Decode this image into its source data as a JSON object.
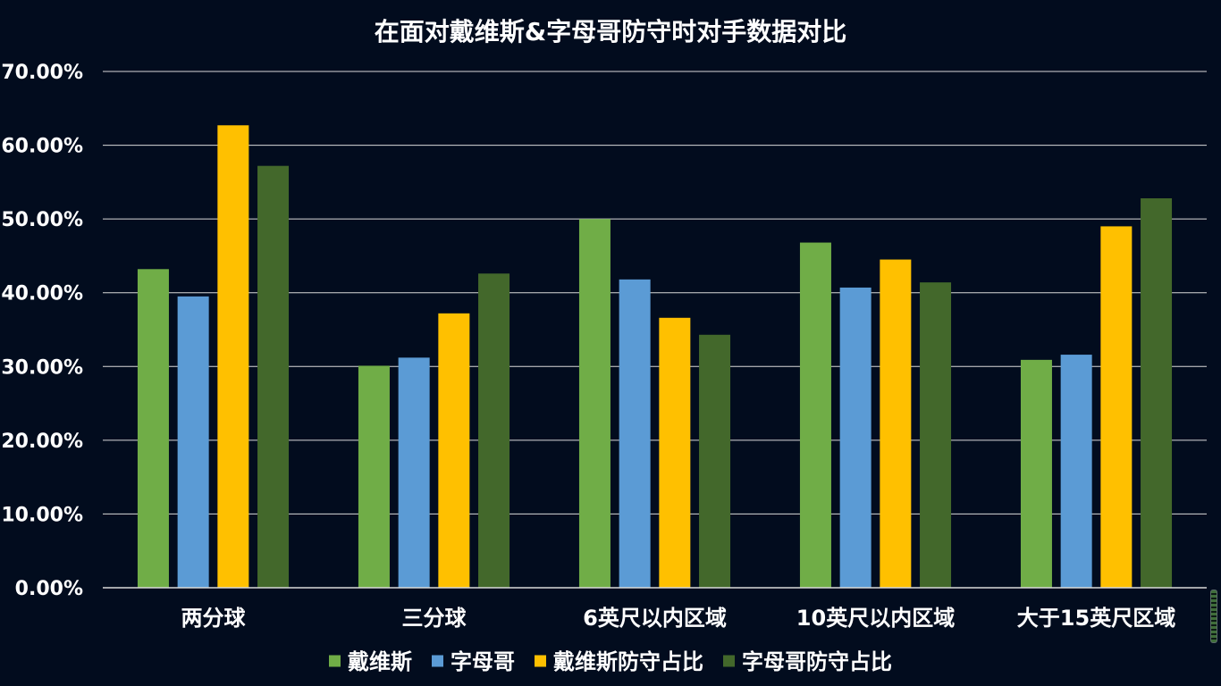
{
  "chart_data": {
    "type": "bar",
    "title": "在面对戴维斯&字母哥防守时对手数据对比",
    "categories": [
      "两分球",
      "三分球",
      "6英尺以内区域",
      "10英尺以内区域",
      "大于15英尺区域"
    ],
    "series": [
      {
        "name": "戴维斯",
        "color": "#70ad47",
        "values": [
          43.2,
          30.1,
          50.0,
          46.8,
          30.9
        ]
      },
      {
        "name": "字母哥",
        "color": "#5b9bd5",
        "values": [
          39.5,
          31.2,
          41.8,
          40.7,
          31.6
        ]
      },
      {
        "name": "戴维斯防守占比",
        "color": "#ffc000",
        "values": [
          62.7,
          37.2,
          36.6,
          44.5,
          49.0
        ]
      },
      {
        "name": "字母哥防守占比",
        "color": "#43682b",
        "values": [
          57.2,
          42.6,
          34.3,
          41.4,
          52.8
        ]
      }
    ],
    "yticks": [
      "0.00%",
      "10.00%",
      "20.00%",
      "30.00%",
      "40.00%",
      "50.00%",
      "60.00%",
      "70.00%"
    ],
    "ylim": [
      0,
      70
    ],
    "xlabel": "",
    "ylabel": "",
    "grid": true,
    "legend": "bottom"
  }
}
